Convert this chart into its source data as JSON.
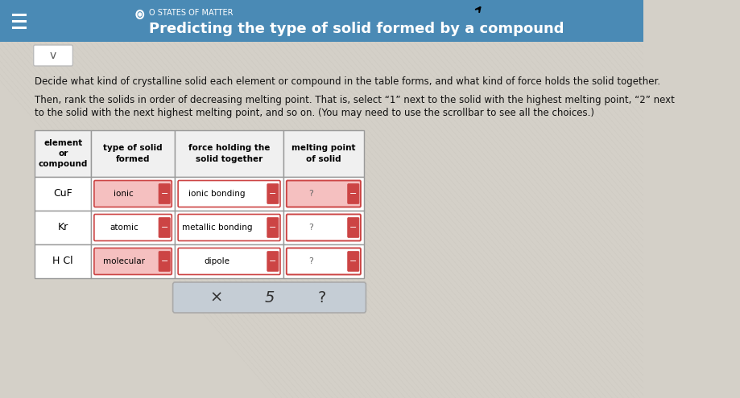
{
  "bg_color": "#d4d0c8",
  "bg_pattern_color": "#ccc8c0",
  "header_bg": "#4a8ab5",
  "header_text": "Predicting the type of solid formed by a compound",
  "header_subtext": "O STATES OF MATTER",
  "instruction1": "Decide what kind of crystalline solid each element or compound in the table forms, and what kind of force holds the solid together.",
  "instruction2_line1": "Then, rank the solids in order of decreasing melting point. That is, select “1” next to the solid with the highest melting point, “2” next",
  "instruction2_line2": "to the solid with the next highest melting point, and so on. (You may need to use the scrollbar to see all the choices.)",
  "col_headers": [
    "element\nor\ncompound",
    "type of solid\nformed",
    "force holding the\nsolid together",
    "melting point\nof solid"
  ],
  "rows": [
    {
      "compound": "CuF",
      "type": "ionic",
      "type_color": "#f5c0c0",
      "type_border": "#cc4444",
      "force": "ionic bonding",
      "force_color": "#ffffff",
      "force_border": "#cc4444",
      "mp_color": "#f5c0c0",
      "mp_border": "#cc4444"
    },
    {
      "compound": "Kr",
      "type": "atomic",
      "type_color": "#ffffff",
      "type_border": "#cc4444",
      "force": "metallic bonding",
      "force_color": "#ffffff",
      "force_border": "#cc4444",
      "mp_color": "#ffffff",
      "mp_border": "#cc4444"
    },
    {
      "compound": "H Cl",
      "type": "molecular",
      "type_color": "#f5c0c0",
      "type_border": "#cc4444",
      "force": "dipole",
      "force_color": "#ffffff",
      "force_border": "#cc4444",
      "mp_color": "#ffffff",
      "mp_border": "#cc4444"
    }
  ],
  "minus_color": "#cc4444",
  "minus_text": "−",
  "footer_symbols": [
    "×",
    "5",
    "?"
  ],
  "footer_bg": "#c5cdd5",
  "footer_border": "#aaaaaa",
  "table_bg": "#ffffff",
  "table_border": "#999999",
  "header_cell_bg": "#f0f0f0",
  "chevron_bg": "#ffffff",
  "chevron_border": "#bbbbbb"
}
